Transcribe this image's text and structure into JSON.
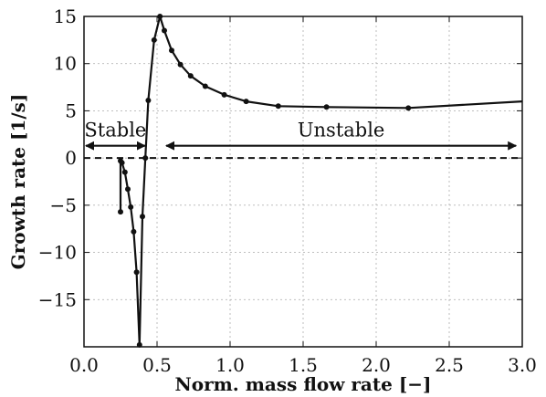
{
  "chart_data": {
    "type": "line",
    "xlabel": "Norm. mass flow rate [−]",
    "ylabel": "Growth rate [1/s]",
    "xlim": [
      0,
      3.0
    ],
    "ylim": [
      -20,
      15
    ],
    "xticks": [
      0.0,
      0.5,
      1.0,
      1.5,
      2.0,
      2.5,
      3.0
    ],
    "xtick_labels": [
      "0.0",
      "0.5",
      "1.0",
      "1.5",
      "2.0",
      "2.5",
      "3.0"
    ],
    "yticks": [
      15,
      10,
      5,
      0,
      -5,
      -10,
      -15
    ],
    "ytick_labels": [
      "15",
      "10",
      "5",
      "0",
      "−5",
      "−10",
      "−15"
    ],
    "grid": true,
    "reference_line": {
      "y": 0,
      "style": "dashed"
    },
    "series": [
      {
        "x": [
          0.25,
          0.25,
          0.26,
          0.28,
          0.3,
          0.32,
          0.34,
          0.36,
          0.38,
          0.4,
          0.42,
          0.44,
          0.48,
          0.52,
          0.55,
          0.6,
          0.66,
          0.73,
          0.83,
          0.96,
          1.11,
          1.33,
          1.66,
          2.22,
          3.0
        ],
        "y": [
          -5.7,
          -0.3,
          -0.5,
          -1.5,
          -3.3,
          -5.2,
          -7.8,
          -12.1,
          -19.8,
          -6.2,
          0.0,
          6.1,
          12.5,
          15.0,
          13.5,
          11.4,
          9.9,
          8.7,
          7.6,
          6.7,
          6.0,
          5.5,
          5.4,
          5.3,
          6.0
        ],
        "markers_hidden_from_index": 24
      }
    ],
    "annotations": [
      {
        "text": "Stable",
        "x_range": [
          0.0,
          0.43
        ],
        "y": 1.3
      },
      {
        "text": "Unstable",
        "x_range": [
          0.55,
          2.97
        ],
        "y": 1.3
      }
    ]
  }
}
